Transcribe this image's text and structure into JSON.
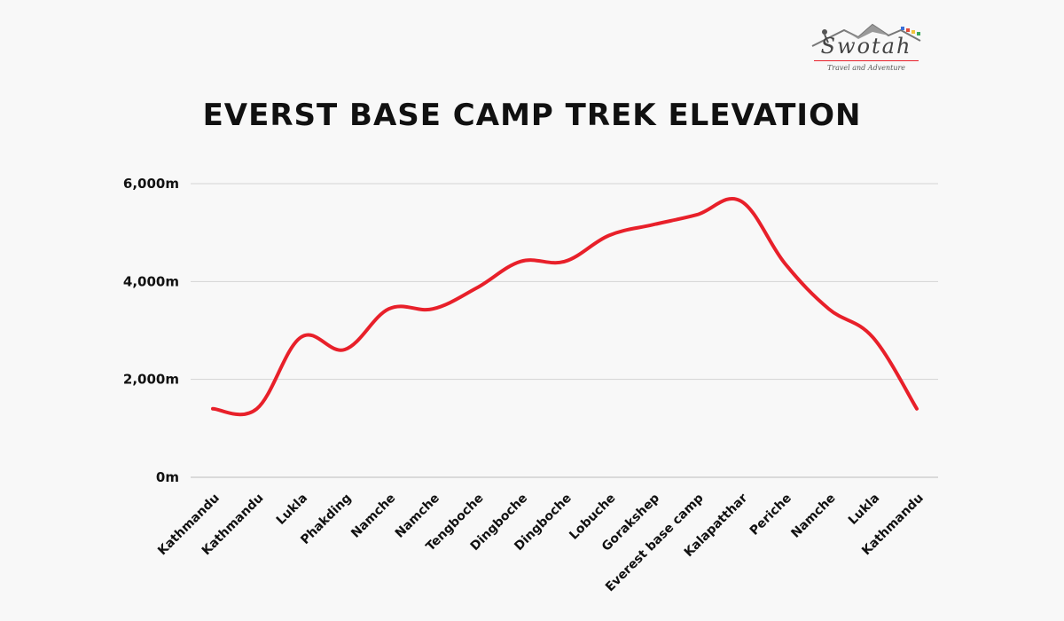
{
  "brand": {
    "name": "Swotah",
    "tagline": "Travel and Adventure"
  },
  "chart_data": {
    "type": "line",
    "title": "EVERST BASE CAMP TREK ELEVATION",
    "xlabel": "",
    "ylabel": "",
    "ylim": [
      0,
      6000
    ],
    "yticks": [
      0,
      2000,
      4000,
      6000
    ],
    "ytick_labels": [
      "0m",
      "2,000m",
      "4,000m",
      "6,000m"
    ],
    "grid": true,
    "line_color": "#e8202a",
    "categories": [
      "Kathmandu",
      "Kathmandu",
      "Lukla",
      "Phakding",
      "Namche",
      "Namche",
      "Tengboche",
      "Dingboche",
      "Dingboche",
      "Lobuche",
      "Gorakshep",
      "Everest base camp",
      "Kalapatthar",
      "Periche",
      "Namche",
      "Lukla",
      "Kathmandu"
    ],
    "series": [
      {
        "values": [
          1400,
          1400,
          2860,
          2610,
          3440,
          3440,
          3870,
          4410,
          4410,
          4940,
          5160,
          5364,
          5645,
          4371,
          3440,
          2860,
          1400
        ]
      }
    ]
  }
}
